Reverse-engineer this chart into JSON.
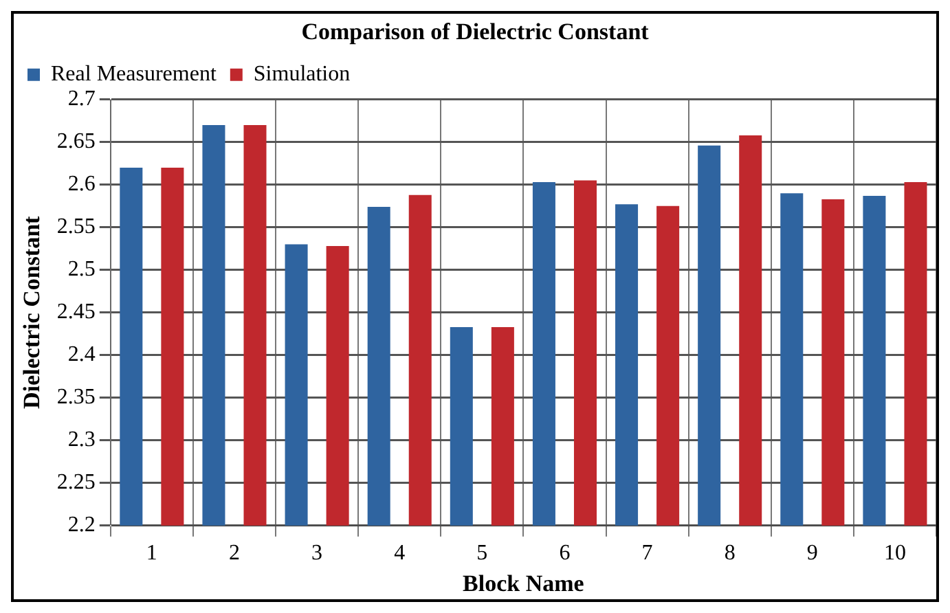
{
  "chart_data": {
    "type": "bar",
    "title": "Comparison of Dielectric Constant",
    "xlabel": "Block Name",
    "ylabel": "Dielectric Constant",
    "categories": [
      "1",
      "2",
      "3",
      "4",
      "5",
      "6",
      "7",
      "8",
      "9",
      "10"
    ],
    "series": [
      {
        "name": "Real Measurement",
        "color": "#2f64a0",
        "values": [
          2.62,
          2.67,
          2.53,
          2.574,
          2.433,
          2.603,
          2.577,
          2.646,
          2.59,
          2.587
        ]
      },
      {
        "name": "Simulation",
        "color": "#c0282d",
        "values": [
          2.62,
          2.67,
          2.528,
          2.588,
          2.433,
          2.605,
          2.575,
          2.658,
          2.583,
          2.603
        ]
      }
    ],
    "ylim": [
      2.2,
      2.7
    ],
    "yticks": [
      2.2,
      2.25,
      2.3,
      2.35,
      2.4,
      2.45,
      2.5,
      2.55,
      2.6,
      2.65,
      2.7
    ],
    "grid": true,
    "legend": "top"
  }
}
